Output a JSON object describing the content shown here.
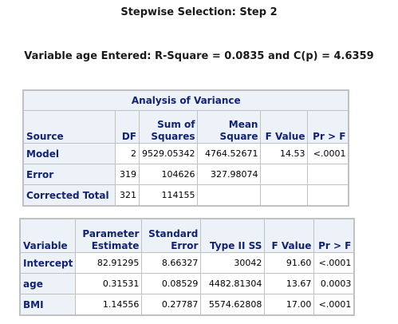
{
  "title": "Stepwise Selection: Step 2",
  "subtitle": "Variable age Entered: R-Square = 0.0835 and C(p) = 4.6359",
  "anova": {
    "caption": "Analysis of Variance",
    "headers": {
      "source": "Source",
      "df": "DF",
      "ss": [
        "Sum of",
        "Squares"
      ],
      "ms": [
        "Mean",
        "Square"
      ],
      "f": "F Value",
      "p": "Pr > F"
    },
    "rows": [
      {
        "source": "Model",
        "df": "2",
        "ss": "9529.05342",
        "ms": "4764.52671",
        "f": "14.53",
        "p": "<.0001"
      },
      {
        "source": "Error",
        "df": "319",
        "ss": "104626",
        "ms": "327.98074",
        "f": "",
        "p": ""
      },
      {
        "source": "Corrected Total",
        "df": "321",
        "ss": "114155",
        "ms": "",
        "f": "",
        "p": ""
      }
    ]
  },
  "params": {
    "headers": {
      "variable": "Variable",
      "estimate": [
        "Parameter",
        "Estimate"
      ],
      "se": [
        "Standard",
        "Error"
      ],
      "ss": "Type II SS",
      "f": "F Value",
      "p": "Pr > F"
    },
    "rows": [
      {
        "variable": "Intercept",
        "estimate": "82.91295",
        "se": "8.66327",
        "ss": "30042",
        "f": "91.60",
        "p": "<.0001"
      },
      {
        "variable": "age",
        "estimate": "0.31531",
        "se": "0.08529",
        "ss": "4482.81304",
        "f": "13.67",
        "p": "0.0003"
      },
      {
        "variable": "BMI",
        "estimate": "1.14556",
        "se": "0.27787",
        "ss": "5574.62808",
        "f": "17.00",
        "p": "<.0001"
      }
    ]
  }
}
